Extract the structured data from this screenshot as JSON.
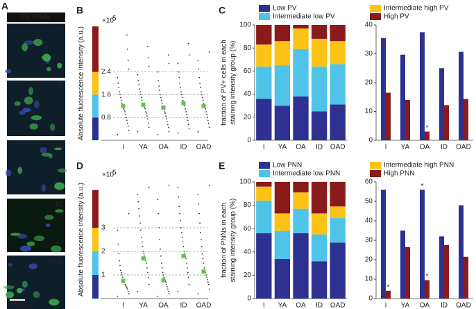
{
  "images": {
    "panel": "A",
    "header_parts": [
      {
        "text": "PV",
        "color": "#6673ff"
      },
      {
        "text": "/",
        "color": "#ffffff"
      },
      {
        "text": "PNN",
        "color": "#3fd13f"
      }
    ],
    "tiles": [
      "I",
      "YA",
      "OA",
      "ID",
      "OAD"
    ],
    "scale_bar": "50 μm"
  },
  "chart_data": [
    {
      "type": "strip",
      "panel": "B",
      "ylabel": "Absolute fluorescence intensity (a.u.)",
      "y_multiplier": "×10",
      "y_exponent": "5",
      "categories": [
        "I",
        "YA",
        "OA",
        "ID",
        "OAD"
      ],
      "points": [
        [
          0.2,
          0.35,
          0.5,
          0.6,
          0.7,
          0.8,
          0.9,
          1.0,
          1.05,
          1.1,
          1.2,
          1.25,
          1.3,
          1.4,
          1.5,
          1.6,
          1.7,
          1.85,
          2.0,
          2.2,
          2.5,
          2.8,
          3.2,
          3.7
        ],
        [
          0.3,
          0.45,
          0.6,
          0.75,
          0.85,
          0.95,
          1.0,
          1.1,
          1.15,
          1.2,
          1.25,
          1.3,
          1.4,
          1.5,
          1.6,
          1.7,
          1.8,
          1.95,
          2.1,
          2.3,
          2.6,
          2.9,
          3.3
        ],
        [
          0.2,
          0.3,
          0.45,
          0.55,
          0.65,
          0.75,
          0.85,
          0.95,
          1.0,
          1.1,
          1.15,
          1.2,
          1.3,
          1.4,
          1.5,
          1.6,
          1.75,
          1.9,
          2.1,
          2.4,
          2.7,
          3.0
        ],
        [
          0.25,
          0.4,
          0.55,
          0.7,
          0.8,
          0.9,
          1.0,
          1.1,
          1.2,
          1.3,
          1.35,
          1.4,
          1.5,
          1.6,
          1.7,
          1.85,
          2.0,
          2.2,
          2.4,
          2.7,
          3.0,
          3.4
        ],
        [
          0.3,
          0.45,
          0.6,
          0.7,
          0.8,
          0.9,
          1.0,
          1.1,
          1.15,
          1.2,
          1.3,
          1.4,
          1.5,
          1.6,
          1.7,
          1.85,
          2.0,
          2.2,
          2.5,
          2.8,
          3.1
        ]
      ],
      "medians": [
        1.2,
        1.25,
        1.15,
        1.3,
        1.2
      ],
      "median_color": "#6abf4b",
      "point_color": "#333333",
      "ylim": [
        0,
        4
      ],
      "yticks": [
        0.8,
        1.6,
        2.4
      ],
      "grid": "dashed",
      "color_bands": [
        {
          "color": "#2e3192",
          "from": 0,
          "to": 0.8
        },
        {
          "color": "#4fc3e8",
          "from": 0.8,
          "to": 1.6
        },
        {
          "color": "#fbc314",
          "from": 1.6,
          "to": 2.4
        },
        {
          "color": "#8b1a1a",
          "from": 2.4,
          "to": 4
        }
      ]
    },
    {
      "type": "stacked_bar",
      "panel": "C",
      "ylabel_lines": [
        "fraction of PV+ cells in each",
        "staining intensity group (%)"
      ],
      "categories": [
        "I",
        "YA",
        "OA",
        "ID",
        "OAD"
      ],
      "series": [
        {
          "name": "Low PV",
          "color": "#2e3192",
          "values": [
            36,
            30,
            38,
            25,
            31
          ]
        },
        {
          "name": "Intermediate low PV",
          "color": "#4fc3e8",
          "values": [
            28,
            35,
            41,
            39,
            35
          ]
        },
        {
          "name": "Intermediate high PV",
          "color": "#fbc314",
          "values": [
            19,
            21,
            18,
            24,
            20
          ]
        },
        {
          "name": "High PV",
          "color": "#8b1a1a",
          "values": [
            17,
            14,
            3,
            12,
            14
          ]
        }
      ],
      "ylim": [
        0,
        100
      ],
      "yticks": [
        0,
        20,
        40,
        60,
        80,
        100
      ]
    },
    {
      "type": "grouped_bar",
      "categories": [
        "I",
        "YA",
        "OA",
        "ID",
        "OAD"
      ],
      "series": [
        {
          "color": "#2e3192",
          "values": [
            35.5,
            29.7,
            37.5,
            25,
            30.7
          ],
          "labels": [
            null,
            null,
            null,
            null,
            null
          ]
        },
        {
          "color": "#8b1a1a",
          "values": [
            16.5,
            14,
            3,
            12.2,
            14.3
          ],
          "labels": [
            null,
            null,
            "*",
            null,
            null
          ]
        }
      ],
      "ylim": [
        0,
        40
      ],
      "yticks": [
        0,
        10,
        20,
        30,
        40
      ]
    },
    {
      "type": "strip",
      "panel": "D",
      "ylabel": "Absolute fluorescence intensity (a.u.)",
      "y_multiplier": "×10",
      "y_exponent": "5",
      "categories": [
        "I",
        "YA",
        "OA",
        "ID",
        "OAD"
      ],
      "points": [
        [
          0.1,
          0.2,
          0.3,
          0.4,
          0.45,
          0.5,
          0.55,
          0.6,
          0.7,
          0.75,
          0.8,
          0.9,
          1.0,
          1.1,
          1.2,
          1.4,
          1.6,
          1.9,
          2.3,
          2.9,
          3.6
        ],
        [
          0.3,
          0.6,
          0.9,
          1.1,
          1.3,
          1.5,
          1.6,
          1.7,
          1.8,
          1.9,
          2.0,
          2.2,
          2.4,
          2.6,
          2.9,
          3.2,
          3.5,
          3.8,
          4.1,
          4.4,
          4.7
        ],
        [
          0.1,
          0.2,
          0.3,
          0.4,
          0.5,
          0.6,
          0.7,
          0.75,
          0.8,
          0.9,
          1.0,
          1.1,
          1.3,
          1.5,
          1.8,
          2.1,
          2.5,
          3.0,
          3.6,
          4.2,
          4.8
        ],
        [
          0.3,
          0.6,
          0.9,
          1.1,
          1.3,
          1.5,
          1.7,
          1.8,
          1.9,
          2.0,
          2.2,
          2.4,
          2.6,
          2.8,
          3.0,
          3.3,
          3.6,
          3.9,
          4.3,
          4.7
        ],
        [
          0.2,
          0.4,
          0.6,
          0.7,
          0.8,
          0.9,
          1.0,
          1.1,
          1.2,
          1.3,
          1.5,
          1.7,
          1.9,
          2.2,
          2.5,
          2.8,
          3.2,
          3.6,
          4.0,
          4.4,
          4.8
        ]
      ],
      "medians": [
        0.75,
        1.7,
        0.78,
        1.8,
        1.15
      ],
      "median_color": "#6abf4b",
      "point_color": "#333333",
      "ylim": [
        0,
        5
      ],
      "yticks": [
        1,
        2,
        3
      ],
      "grid": "dashed",
      "color_bands": [
        {
          "color": "#2e3192",
          "from": 0,
          "to": 1
        },
        {
          "color": "#4fc3e8",
          "from": 1,
          "to": 2
        },
        {
          "color": "#fbc314",
          "from": 2,
          "to": 3
        },
        {
          "color": "#8b1a1a",
          "from": 3,
          "to": 4.6
        }
      ]
    },
    {
      "type": "stacked_bar",
      "panel": "E",
      "ylabel_lines": [
        "fraction of PNNs in each",
        "staining intensity group (%)"
      ],
      "categories": [
        "I",
        "YA",
        "OA",
        "ID",
        "OAD"
      ],
      "series": [
        {
          "name": "Low PNN",
          "color": "#2e3192",
          "values": [
            56,
            34,
            56,
            32,
            48
          ]
        },
        {
          "name": "Intermediate low PNN",
          "color": "#4fc3e8",
          "values": [
            28,
            24,
            21,
            23,
            21
          ]
        },
        {
          "name": "Intermediate high PNN",
          "color": "#fbc314",
          "values": [
            12,
            15,
            14,
            18,
            10
          ]
        },
        {
          "name": "High PNN",
          "color": "#8b1a1a",
          "values": [
            4,
            27,
            9,
            27,
            21
          ]
        }
      ],
      "ylim": [
        0,
        100
      ],
      "yticks": [
        0,
        20,
        40,
        60,
        80,
        100
      ]
    },
    {
      "type": "grouped_bar",
      "categories": [
        "I",
        "YA",
        "OA",
        "ID",
        "OAD"
      ],
      "series": [
        {
          "color": "#2e3192",
          "values": [
            56,
            35,
            56,
            32,
            48
          ],
          "labels": [
            null,
            null,
            "*",
            null,
            null
          ]
        },
        {
          "color": "#8b1a1a",
          "values": [
            4,
            26.5,
            9.5,
            27.5,
            21.5
          ],
          "labels": [
            "*",
            null,
            "*",
            null,
            null
          ]
        }
      ],
      "ylim": [
        0,
        60
      ],
      "yticks": [
        0,
        10,
        20,
        30,
        40,
        50,
        60
      ]
    }
  ]
}
